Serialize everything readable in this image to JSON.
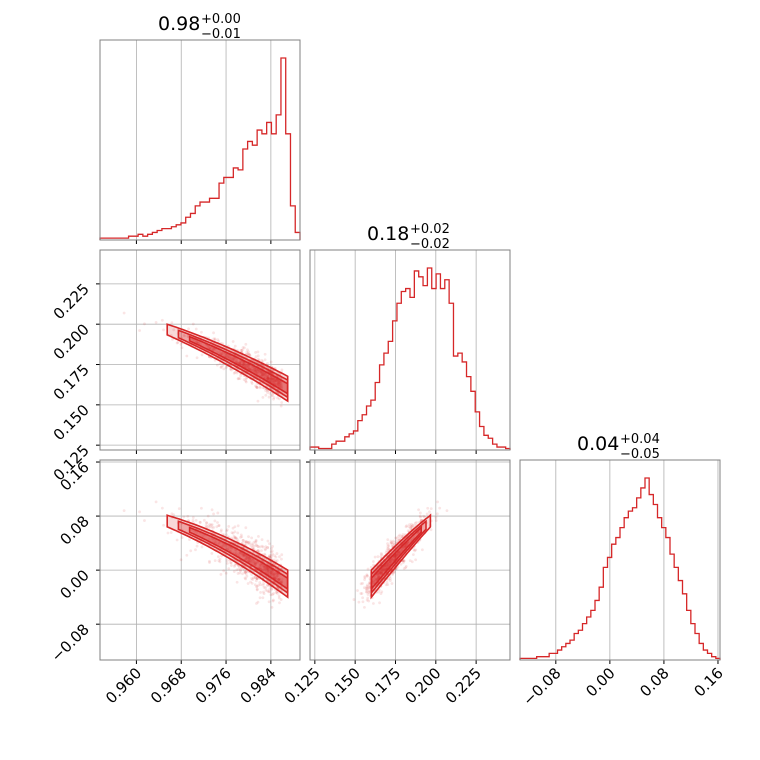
{
  "chart_data": {
    "type": "corner",
    "color": "#d62728",
    "grid": true,
    "parameters": [
      {
        "title": {
          "median": "0.98",
          "plus": "+0.00",
          "minus": "−0.01"
        },
        "range": [
          0.9535,
          0.9892
        ],
        "ticks": [
          0.96,
          0.968,
          0.976,
          0.984
        ],
        "tick_labels": [
          "0.960",
          "0.968",
          "0.976",
          "0.984"
        ],
        "histogram": [
          1,
          1,
          1,
          1,
          1,
          1,
          2,
          2,
          3,
          2,
          3,
          4,
          5,
          6,
          6,
          7,
          8,
          9,
          12,
          14,
          18,
          20,
          20,
          22,
          22,
          30,
          33,
          33,
          38,
          37,
          48,
          52,
          50,
          58,
          56,
          62,
          56,
          66,
          96,
          56,
          18,
          4
        ]
      },
      {
        "title": {
          "median": "0.18",
          "plus": "+0.02",
          "minus": "−0.02"
        },
        "range": [
          0.122,
          0.246
        ],
        "ticks": [
          0.125,
          0.15,
          0.175,
          0.2,
          0.225
        ],
        "tick_labels": [
          "0.125",
          "0.150",
          "0.175",
          "0.200",
          "0.225"
        ],
        "histogram": [
          2,
          2,
          1,
          1,
          1,
          4,
          6,
          6,
          9,
          11,
          13,
          20,
          24,
          30,
          34,
          46,
          58,
          66,
          74,
          88,
          100,
          108,
          110,
          104,
          122,
          118,
          112,
          124,
          110,
          120,
          110,
          116,
          100,
          64,
          66,
          60,
          50,
          40,
          26,
          16,
          10,
          8,
          4,
          2,
          2,
          1
        ]
      },
      {
        "title": {
          "median": "0.04",
          "plus": "+0.04",
          "minus": "−0.05"
        },
        "range": [
          -0.133,
          0.163
        ],
        "ticks": [
          -0.08,
          0.0,
          0.08,
          0.16
        ],
        "tick_labels": [
          "−0.08",
          "0.00",
          "0.08",
          "0.16"
        ],
        "histogram": [
          1,
          1,
          1,
          1,
          2,
          2,
          2,
          4,
          4,
          6,
          8,
          10,
          12,
          16,
          18,
          22,
          26,
          30,
          36,
          44,
          56,
          62,
          70,
          74,
          80,
          86,
          90,
          92,
          98,
          104,
          110,
          100,
          94,
          86,
          80,
          74,
          64,
          56,
          48,
          40,
          30,
          22,
          16,
          10,
          6,
          4,
          2,
          1
        ]
      }
    ],
    "y_tick_labels_row2": [
      "0.125",
      "0.150",
      "0.175",
      "0.200",
      "0.225"
    ],
    "y_tick_values_row2": [
      0.125,
      0.15,
      0.175,
      0.2,
      0.225
    ],
    "y_tick_labels_row3": [
      "−0.08",
      "0.00",
      "0.08",
      "0.16"
    ],
    "y_tick_values_row3": [
      -0.08,
      0.0,
      0.08,
      0.16
    ]
  }
}
